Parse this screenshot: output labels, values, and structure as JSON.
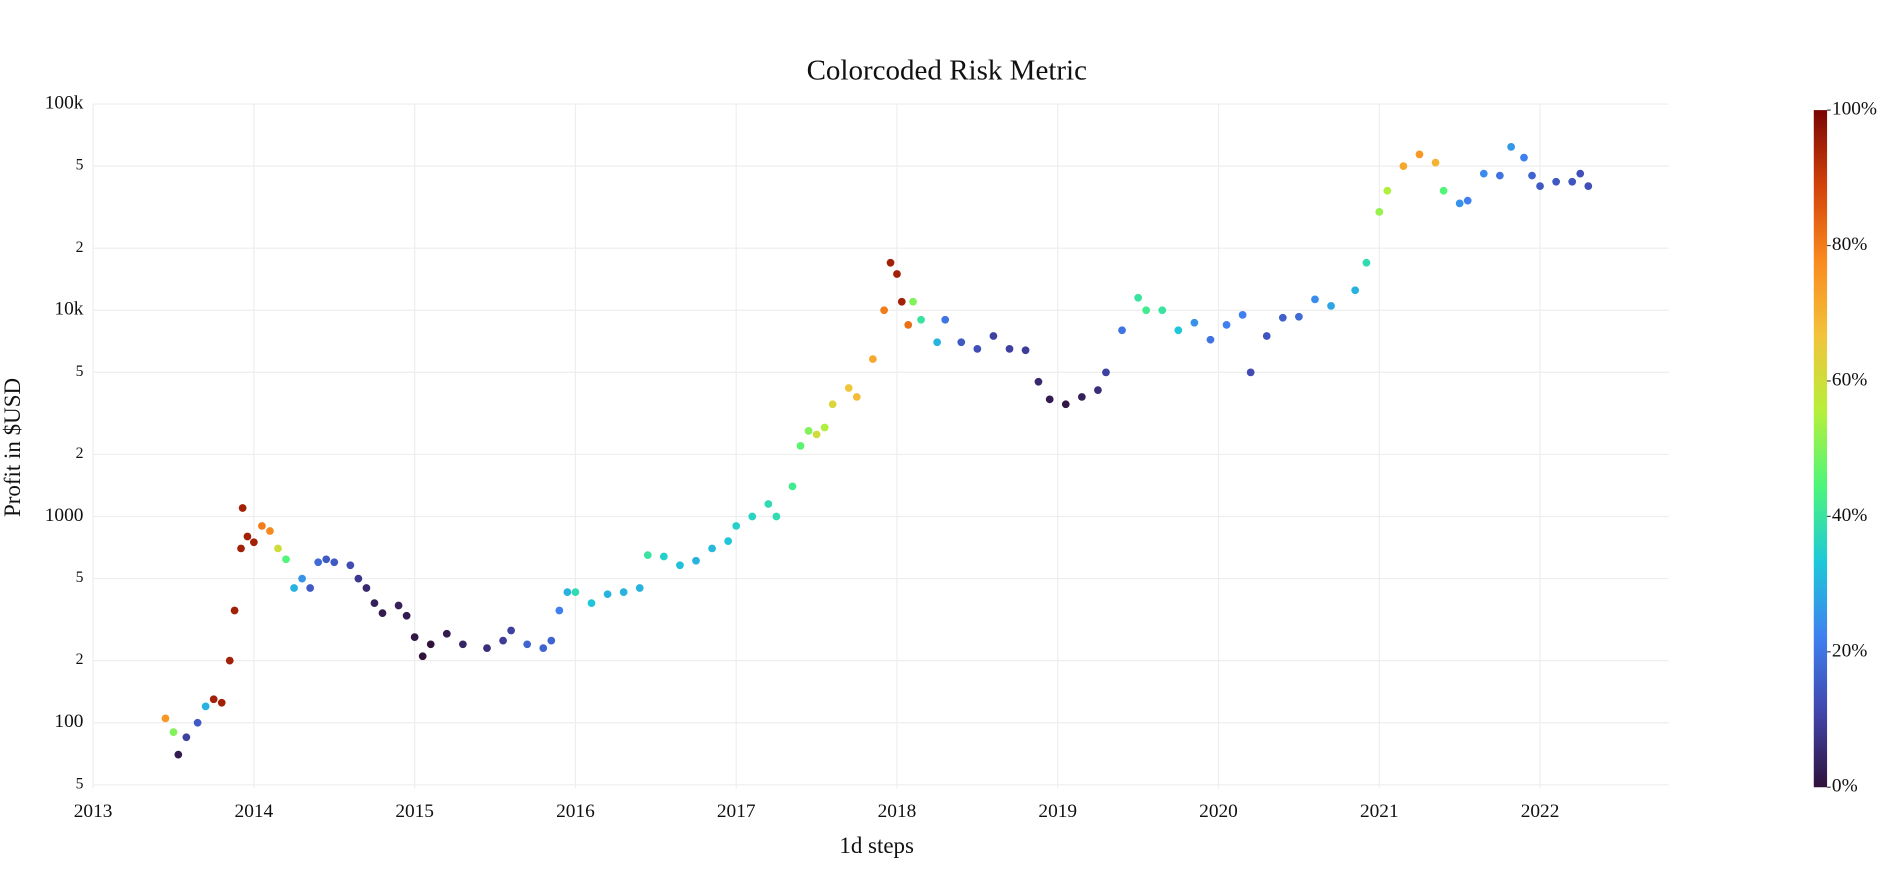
{
  "chart_data": {
    "type": "scatter",
    "title": "Colorcoded Risk Metric",
    "x_label": "1d steps",
    "y_label": "Profit in $USD",
    "log_y": true,
    "grid": true,
    "xlim": [
      2013,
      2022.8
    ],
    "xticks": [
      2013,
      2014,
      2015,
      2016,
      2017,
      2018,
      2019,
      2020,
      2021,
      2022
    ],
    "ylim": [
      48,
      100000
    ],
    "yticks": [
      {
        "value": 50,
        "label": "5"
      },
      100,
      {
        "value": 200,
        "label": "2"
      },
      {
        "value": 500,
        "label": "5"
      },
      1000,
      {
        "value": 2000,
        "label": "2"
      },
      {
        "value": 5000,
        "label": "5"
      },
      {
        "value": 10000,
        "label": "10k"
      },
      {
        "value": 20000,
        "label": "2"
      },
      {
        "value": 50000,
        "label": "5"
      },
      {
        "value": 100000,
        "label": "100k"
      }
    ],
    "colorbar": {
      "lim": [
        0,
        100
      ],
      "ticks": [
        {
          "value": 0,
          "label": "0%"
        },
        {
          "value": 20,
          "label": "20%"
        },
        {
          "value": 40,
          "label": "40%"
        },
        {
          "value": 60,
          "label": "60%"
        },
        {
          "value": 80,
          "label": "80%"
        },
        {
          "value": 100,
          "label": "100%"
        }
      ],
      "colors": [
        "#30123b",
        "#4146ac",
        "#3f80f0",
        "#1ec8d8",
        "#4cf57a",
        "#b6ef3a",
        "#f2c33a",
        "#f98a1e",
        "#d2420a",
        "#7a0403"
      ]
    },
    "x": [
      2013.45,
      2013.5,
      2013.53,
      2013.58,
      2013.65,
      2013.7,
      2013.75,
      2013.8,
      2013.85,
      2013.88,
      2013.92,
      2013.93,
      2013.96,
      2014.0,
      2014.05,
      2014.1,
      2014.15,
      2014.2,
      2014.25,
      2014.3,
      2014.35,
      2014.4,
      2014.45,
      2014.5,
      2014.6,
      2014.65,
      2014.7,
      2014.75,
      2014.8,
      2014.9,
      2014.95,
      2015.0,
      2015.05,
      2015.1,
      2015.2,
      2015.3,
      2015.45,
      2015.55,
      2015.6,
      2015.7,
      2015.8,
      2015.85,
      2015.9,
      2015.95,
      2016.0,
      2016.1,
      2016.2,
      2016.3,
      2016.4,
      2016.45,
      2016.55,
      2016.65,
      2016.75,
      2016.85,
      2016.95,
      2017.0,
      2017.1,
      2017.2,
      2017.25,
      2017.35,
      2017.4,
      2017.45,
      2017.5,
      2017.55,
      2017.6,
      2017.7,
      2017.75,
      2017.85,
      2017.92,
      2017.96,
      2018.0,
      2018.03,
      2018.07,
      2018.1,
      2018.15,
      2018.25,
      2018.3,
      2018.4,
      2018.5,
      2018.6,
      2018.7,
      2018.8,
      2018.88,
      2018.95,
      2019.05,
      2019.15,
      2019.25,
      2019.3,
      2019.4,
      2019.5,
      2019.55,
      2019.65,
      2019.75,
      2019.85,
      2019.95,
      2020.05,
      2020.15,
      2020.2,
      2020.3,
      2020.4,
      2020.5,
      2020.6,
      2020.7,
      2020.85,
      2020.92,
      2021.0,
      2021.05,
      2021.15,
      2021.25,
      2021.35,
      2021.4,
      2021.5,
      2021.55,
      2021.65,
      2021.75,
      2021.82,
      2021.9,
      2021.95,
      2022.0,
      2022.1,
      2022.2,
      2022.25,
      2022.3
    ],
    "values": [
      105,
      90,
      70,
      85,
      100,
      120,
      130,
      125,
      200,
      350,
      700,
      1100,
      800,
      750,
      900,
      850,
      700,
      620,
      450,
      500,
      450,
      600,
      620,
      600,
      580,
      500,
      450,
      380,
      340,
      370,
      330,
      260,
      210,
      240,
      270,
      240,
      230,
      250,
      280,
      240,
      230,
      250,
      350,
      430,
      430,
      380,
      420,
      430,
      450,
      650,
      640,
      580,
      610,
      700,
      760,
      900,
      1000,
      1150,
      1000,
      1400,
      2200,
      2600,
      2500,
      2700,
      3500,
      4200,
      3800,
      5800,
      10000,
      17000,
      15000,
      11000,
      8500,
      11000,
      9000,
      7000,
      9000,
      7000,
      6500,
      7500,
      6500,
      6400,
      4500,
      3700,
      3500,
      3800,
      4100,
      5000,
      8000,
      11500,
      10000,
      10000,
      8000,
      8700,
      7200,
      8500,
      9500,
      5000,
      7500,
      9200,
      9300,
      11300,
      10500,
      12500,
      17000,
      30000,
      38000,
      50000,
      57000,
      52000,
      38000,
      33000,
      34000,
      46000,
      45000,
      62000,
      55000,
      45000,
      40000,
      42000,
      42000,
      46000,
      40000
    ],
    "risk": [
      75,
      50,
      2,
      10,
      15,
      30,
      95,
      95,
      95,
      95,
      95,
      95,
      95,
      95,
      80,
      78,
      60,
      45,
      30,
      25,
      15,
      18,
      15,
      15,
      12,
      8,
      5,
      3,
      2,
      3,
      2,
      1,
      0,
      0,
      2,
      4,
      6,
      9,
      10,
      17,
      17,
      17,
      22,
      30,
      38,
      33,
      30,
      30,
      30,
      40,
      35,
      32,
      30,
      31,
      33,
      35,
      36,
      38,
      38,
      42,
      46,
      50,
      60,
      55,
      62,
      66,
      68,
      72,
      80,
      95,
      95,
      95,
      82,
      50,
      40,
      30,
      20,
      15,
      13,
      10,
      10,
      9,
      5,
      2,
      1,
      3,
      6,
      10,
      20,
      40,
      42,
      40,
      33,
      25,
      20,
      22,
      22,
      12,
      14,
      16,
      18,
      24,
      28,
      30,
      38,
      52,
      55,
      72,
      75,
      70,
      45,
      25,
      22,
      24,
      20,
      26,
      22,
      17,
      15,
      15,
      14,
      13,
      13
    ]
  }
}
